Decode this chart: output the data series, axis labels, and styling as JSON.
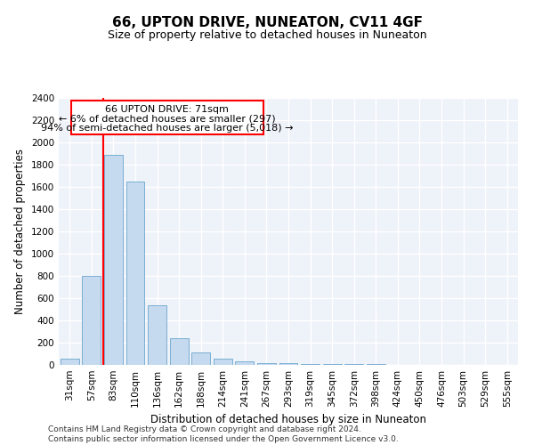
{
  "title": "66, UPTON DRIVE, NUNEATON, CV11 4GF",
  "subtitle": "Size of property relative to detached houses in Nuneaton",
  "xlabel": "Distribution of detached houses by size in Nuneaton",
  "ylabel": "Number of detached properties",
  "bar_labels": [
    "31sqm",
    "57sqm",
    "83sqm",
    "110sqm",
    "136sqm",
    "162sqm",
    "188sqm",
    "214sqm",
    "241sqm",
    "267sqm",
    "293sqm",
    "319sqm",
    "345sqm",
    "372sqm",
    "398sqm",
    "424sqm",
    "450sqm",
    "476sqm",
    "503sqm",
    "529sqm",
    "555sqm"
  ],
  "bar_values": [
    60,
    800,
    1890,
    1650,
    535,
    240,
    110,
    60,
    35,
    20,
    15,
    10,
    5,
    5,
    5,
    0,
    0,
    0,
    0,
    0,
    0
  ],
  "bar_color": "#c5d9ef",
  "bar_edgecolor": "#7bafd4",
  "ylim": [
    0,
    2400
  ],
  "yticks": [
    0,
    200,
    400,
    600,
    800,
    1000,
    1200,
    1400,
    1600,
    1800,
    2000,
    2200,
    2400
  ],
  "property_line_x": 1.55,
  "annotation_line1": "66 UPTON DRIVE: 71sqm",
  "annotation_line2": "← 6% of detached houses are smaller (297)",
  "annotation_line3": "94% of semi-detached houses are larger (5,018) →",
  "footer_line1": "Contains HM Land Registry data © Crown copyright and database right 2024.",
  "footer_line2": "Contains public sector information licensed under the Open Government Licence v3.0.",
  "background_color": "#eef2f9",
  "grid_color": "#ffffff",
  "title_fontsize": 11,
  "subtitle_fontsize": 9,
  "axis_label_fontsize": 8.5,
  "tick_fontsize": 7.5,
  "annotation_fontsize": 8,
  "footer_fontsize": 6.5
}
